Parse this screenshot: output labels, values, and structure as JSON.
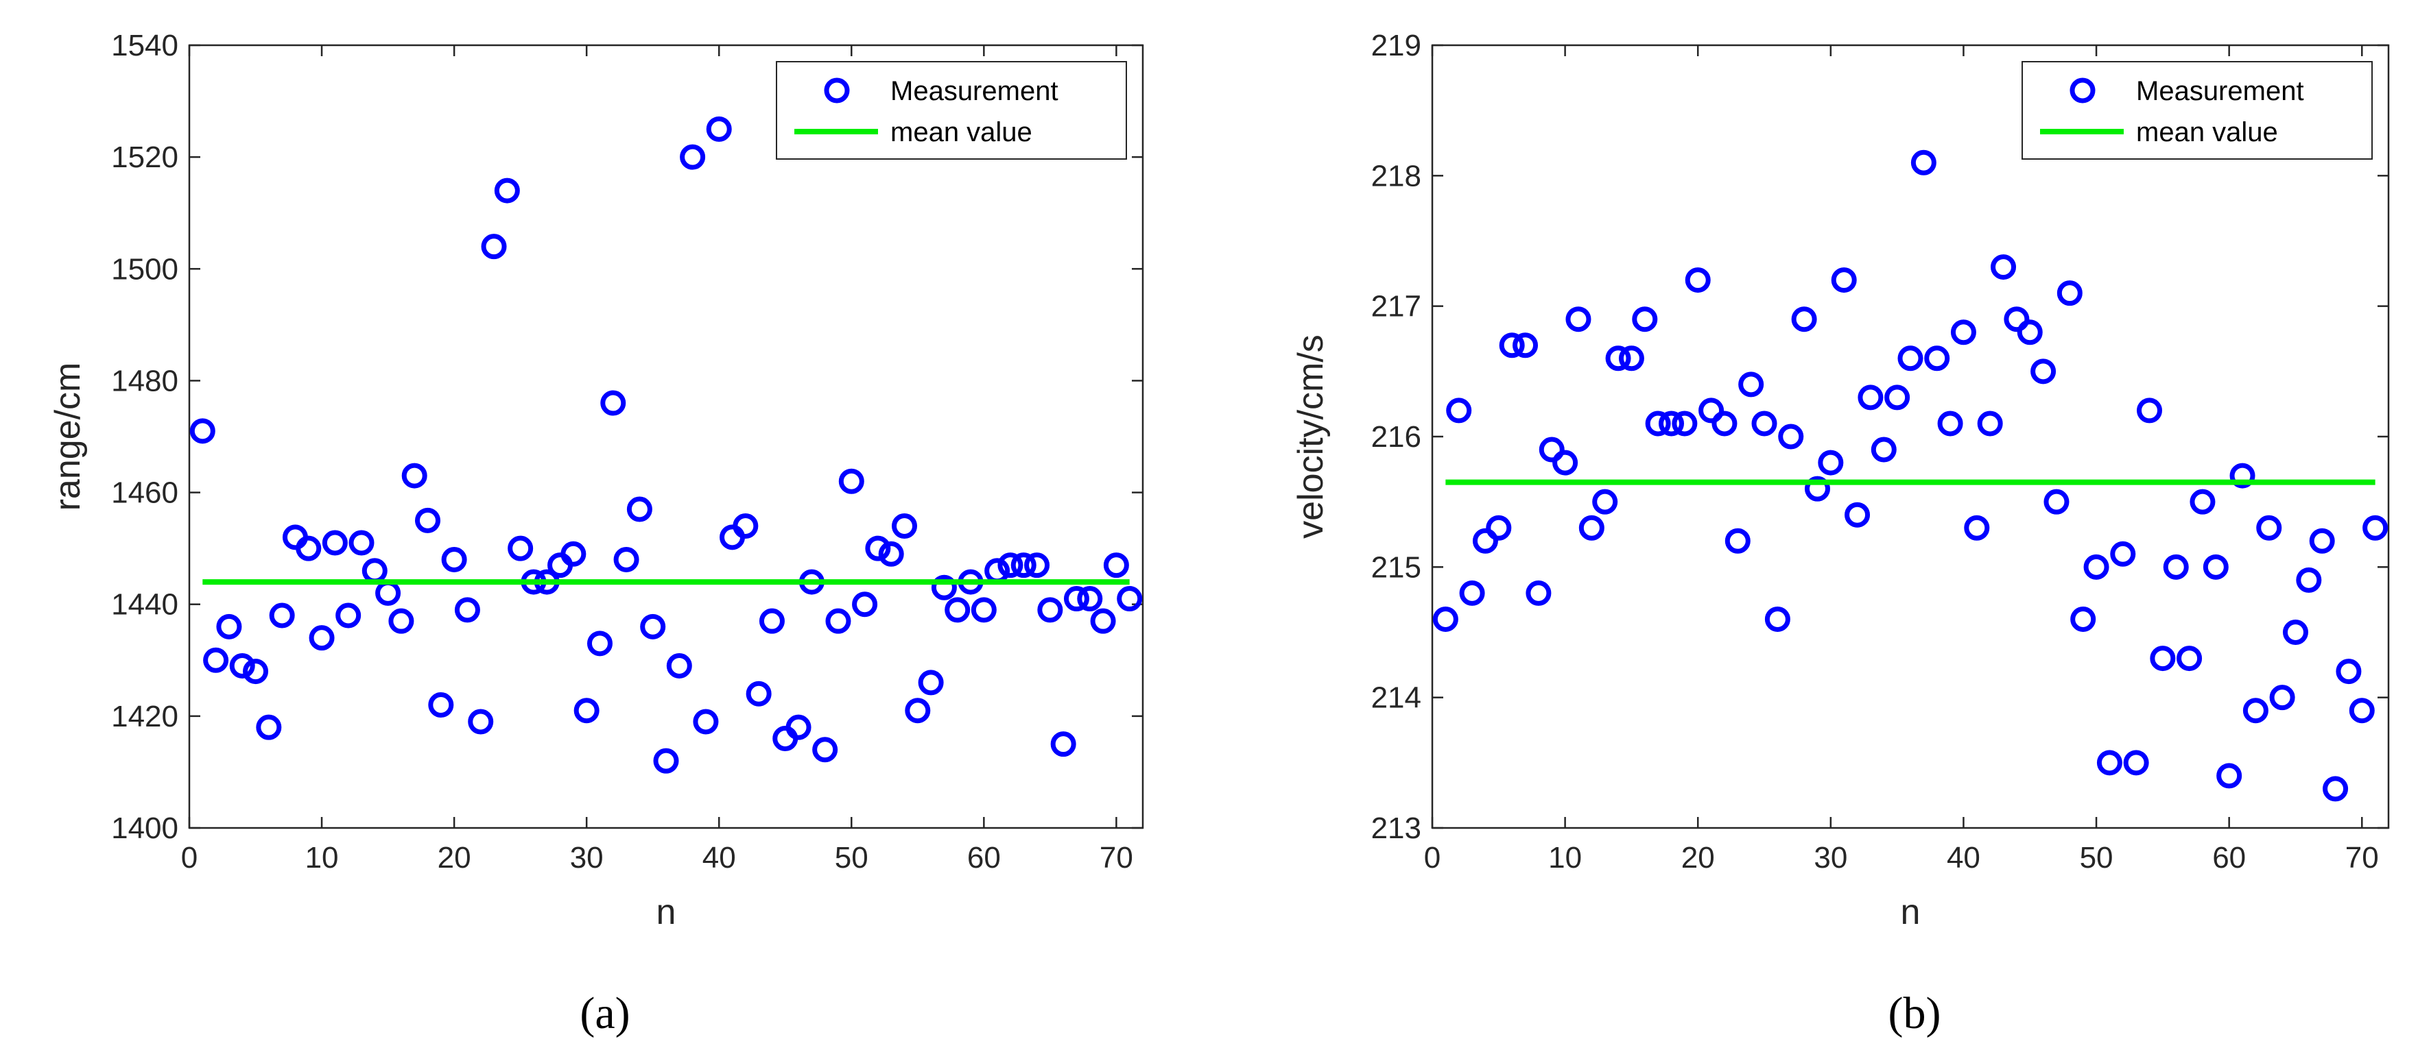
{
  "chart_data": [
    {
      "type": "scatter",
      "panel_label": "(a)",
      "xlabel": "n",
      "ylabel": "range/cm",
      "xlim": [
        0,
        72
      ],
      "ylim": [
        1400,
        1540
      ],
      "xticks": [
        "0",
        "10",
        "20",
        "30",
        "40",
        "50",
        "60",
        "70"
      ],
      "yticks": [
        "1400",
        "1420",
        "1440",
        "1460",
        "1480",
        "1500",
        "1520",
        "1540"
      ],
      "grid": false,
      "legend_position": "top-right",
      "colors": {
        "measurement": "#0000ff",
        "mean": "#00ee00"
      },
      "series": [
        {
          "name": "Measurement",
          "style": "markers",
          "x": [
            1,
            2,
            3,
            4,
            5,
            6,
            7,
            8,
            9,
            10,
            11,
            12,
            13,
            14,
            15,
            16,
            17,
            18,
            19,
            20,
            21,
            22,
            23,
            24,
            25,
            26,
            27,
            28,
            29,
            30,
            31,
            32,
            33,
            34,
            35,
            36,
            37,
            38,
            39,
            40,
            41,
            42,
            43,
            44,
            45,
            46,
            47,
            48,
            49,
            50,
            51,
            52,
            53,
            54,
            55,
            56,
            57,
            58,
            59,
            60,
            61,
            62,
            63,
            64,
            65,
            66,
            67,
            68,
            69,
            70,
            71
          ],
          "y": [
            1471,
            1430,
            1436,
            1429,
            1428,
            1418,
            1438,
            1452,
            1450,
            1434,
            1451,
            1438,
            1451,
            1446,
            1442,
            1437,
            1463,
            1455,
            1422,
            1448,
            1439,
            1419,
            1504,
            1514,
            1450,
            1444,
            1444,
            1447,
            1449,
            1421,
            1433,
            1476,
            1448,
            1457,
            1436,
            1412,
            1429,
            1520,
            1419,
            1525,
            1452,
            1454,
            1424,
            1437,
            1416,
            1418,
            1444,
            1414,
            1437,
            1462,
            1440,
            1450,
            1449,
            1454,
            1421,
            1426,
            1443,
            1439,
            1444,
            1439,
            1446,
            1447,
            1447,
            1447,
            1439,
            1415,
            1441,
            1441,
            1437,
            1447,
            1441
          ]
        },
        {
          "name": "mean value",
          "style": "line",
          "x": [
            1,
            71
          ],
          "y": [
            1444,
            1444
          ]
        }
      ]
    },
    {
      "type": "scatter",
      "panel_label": "(b)",
      "xlabel": "n",
      "ylabel": "velocity/cm/s",
      "xlim": [
        0,
        72
      ],
      "ylim": [
        213,
        219
      ],
      "xticks": [
        "0",
        "10",
        "20",
        "30",
        "40",
        "50",
        "60",
        "70"
      ],
      "yticks": [
        "213",
        "214",
        "215",
        "216",
        "217",
        "218",
        "219"
      ],
      "grid": false,
      "legend_position": "top-right",
      "colors": {
        "measurement": "#0000ff",
        "mean": "#00ee00"
      },
      "series": [
        {
          "name": "Measurement",
          "style": "markers",
          "x": [
            1,
            2,
            3,
            4,
            5,
            6,
            7,
            8,
            9,
            10,
            11,
            12,
            13,
            14,
            15,
            16,
            17,
            18,
            19,
            20,
            21,
            22,
            23,
            24,
            25,
            26,
            27,
            28,
            29,
            30,
            31,
            32,
            33,
            34,
            35,
            36,
            37,
            38,
            39,
            40,
            41,
            42,
            43,
            44,
            45,
            46,
            47,
            48,
            49,
            50,
            51,
            52,
            53,
            54,
            55,
            56,
            57,
            58,
            59,
            60,
            61,
            62,
            63,
            64,
            65,
            66,
            67,
            68,
            69,
            70,
            71
          ],
          "y": [
            214.6,
            216.2,
            214.8,
            215.2,
            215.3,
            216.7,
            216.7,
            214.8,
            215.9,
            215.8,
            216.9,
            215.3,
            215.5,
            216.6,
            216.6,
            216.9,
            216.1,
            216.1,
            216.1,
            217.2,
            216.2,
            216.1,
            215.2,
            216.4,
            216.1,
            214.6,
            216.0,
            216.9,
            215.6,
            215.8,
            217.2,
            215.4,
            216.3,
            215.9,
            216.3,
            216.6,
            218.1,
            216.6,
            216.1,
            216.8,
            215.3,
            216.1,
            217.3,
            216.9,
            216.8,
            216.5,
            215.5,
            217.1,
            214.6,
            215.0,
            213.5,
            215.1,
            213.5,
            216.2,
            214.3,
            215.0,
            214.3,
            215.5,
            215.0,
            213.4,
            215.7,
            213.9,
            215.3,
            214.0,
            214.5,
            214.9,
            215.2,
            213.3,
            214.2,
            213.9,
            215.3
          ]
        },
        {
          "name": "mean value",
          "style": "line",
          "x": [
            1,
            71
          ],
          "y": [
            215.65,
            215.65
          ]
        }
      ]
    }
  ]
}
